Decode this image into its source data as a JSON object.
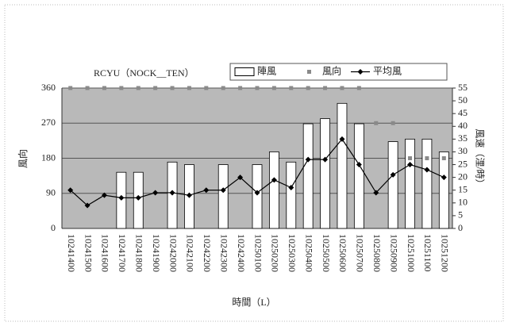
{
  "chart_data": {
    "type": "combo",
    "title": "RCYU（NOCK__TEN）",
    "xlabel": "時間（L）",
    "ylabel": "風向",
    "y2label": "風速（浬/時）",
    "categories": [
      "10241400",
      "10241500",
      "10241600",
      "10241700",
      "10241800",
      "10241900",
      "10242000",
      "10242100",
      "10242200",
      "10242300",
      "10242400",
      "10250100",
      "10250200",
      "10250300",
      "10250400",
      "10250500",
      "10250600",
      "10250700",
      "10250800",
      "10250900",
      "10251000",
      "10251100",
      "10251200"
    ],
    "series": [
      {
        "name": "陣風",
        "type": "bar",
        "axis": "y2",
        "color": "#ffffff",
        "values": [
          null,
          null,
          null,
          22,
          22,
          null,
          26,
          25,
          null,
          25,
          null,
          25,
          30,
          26,
          41,
          43,
          49,
          41,
          null,
          34,
          35,
          35,
          30
        ]
      },
      {
        "name": "風向",
        "type": "scatter",
        "axis": "y",
        "color": "#8a8a8a",
        "values": [
          360,
          360,
          360,
          360,
          360,
          360,
          360,
          360,
          360,
          360,
          360,
          360,
          360,
          360,
          360,
          360,
          360,
          360,
          270,
          270,
          180,
          180,
          180
        ]
      },
      {
        "name": "平均風",
        "type": "line",
        "axis": "y2",
        "color": "#000000",
        "values": [
          15,
          9,
          13,
          12,
          12,
          14,
          14,
          13,
          15,
          15,
          20,
          14,
          19,
          16,
          27,
          27,
          35,
          25,
          14,
          21,
          25,
          23,
          20
        ]
      }
    ],
    "ylim": [
      0,
      360
    ],
    "yticks": [
      0,
      90,
      180,
      270,
      360
    ],
    "y2lim": [
      0,
      55
    ],
    "y2ticks": [
      0,
      5,
      10,
      15,
      20,
      25,
      30,
      35,
      40,
      45,
      50,
      55
    ],
    "grid": true,
    "legend": "top-right"
  }
}
